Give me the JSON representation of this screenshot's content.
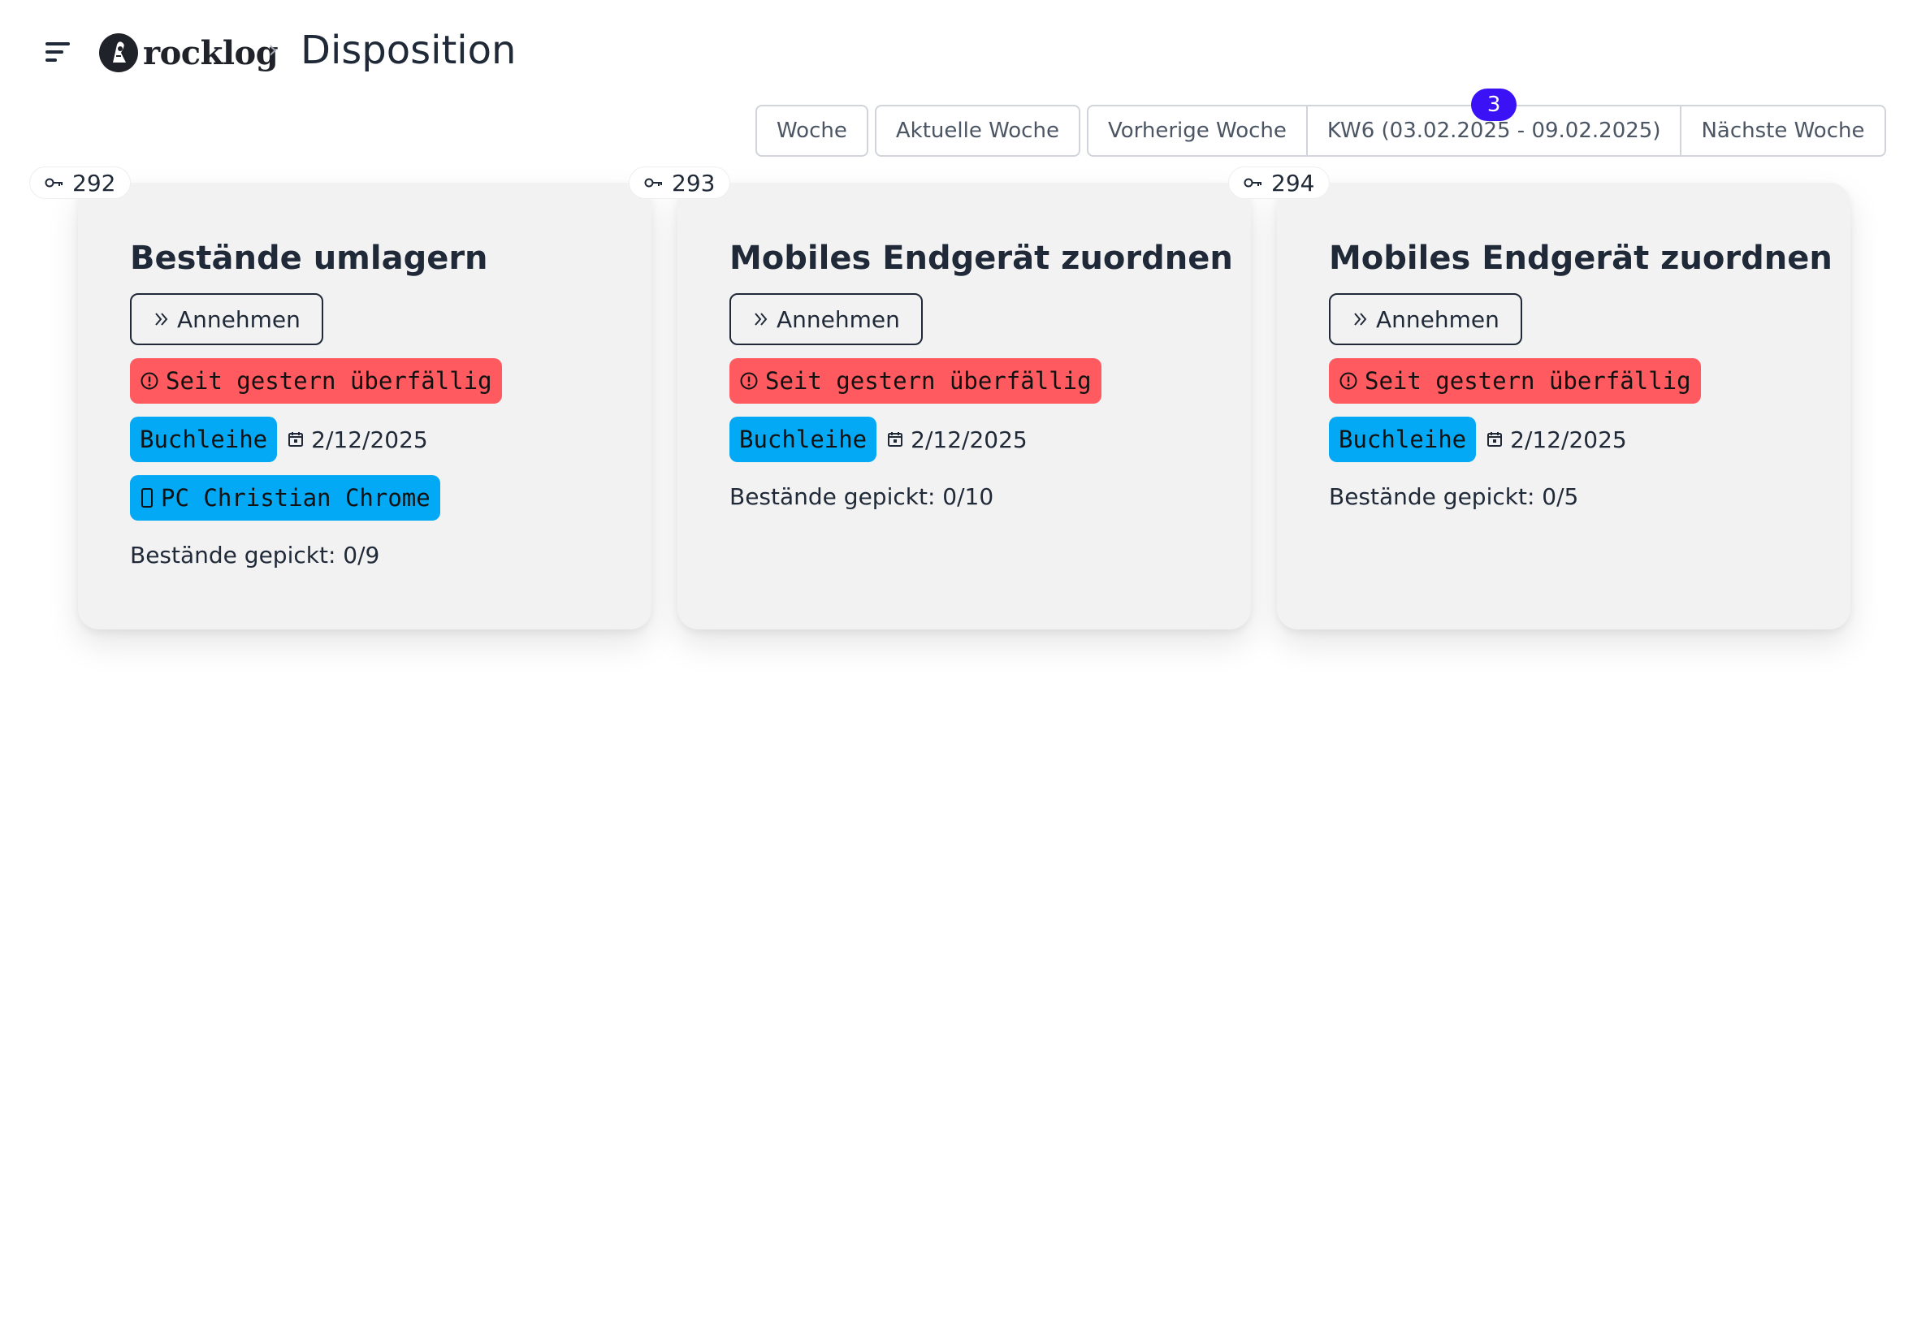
{
  "header": {
    "brand": "rocklog",
    "breadcrumb_separator": "›",
    "page_title": "Disposition"
  },
  "toolbar": {
    "week_label": "Woche",
    "current_week_label": "Aktuelle Woche",
    "previous_week_label": "Vorherige Woche",
    "selected_week_label": "KW6 (03.02.2025 - 09.02.2025)",
    "selected_week_count": "3",
    "next_week_label": "Nächste Woche",
    "badge_color": "#3b12f5"
  },
  "cards": [
    {
      "id": "292",
      "title": "Bestände umlagern",
      "accept_label": "Annehmen",
      "overdue_label": "Seit gestern überfällig",
      "category_label": "Buchleihe",
      "date": "2/12/2025",
      "device_label": "PC Christian Chrome",
      "picked_text": "Bestände gepickt: 0/9"
    },
    {
      "id": "293",
      "title": "Mobiles Endgerät zuordnen",
      "accept_label": "Annehmen",
      "overdue_label": "Seit gestern überfällig",
      "category_label": "Buchleihe",
      "date": "2/12/2025",
      "picked_text": "Bestände gepickt: 0/10"
    },
    {
      "id": "294",
      "title": "Mobiles Endgerät zuordnen",
      "accept_label": "Annehmen",
      "overdue_label": "Seit gestern überfällig",
      "category_label": "Buchleihe",
      "date": "2/12/2025",
      "picked_text": "Bestände gepickt: 0/5"
    }
  ],
  "colors": {
    "overdue": "#ff5a5f",
    "category": "#03a9f4",
    "card_background": "#f2f2f3"
  },
  "icons": {
    "menu": "hamburger-icon",
    "logo": "rocklog-logo-icon",
    "id": "key-icon",
    "accept": "double-chevron-right-icon",
    "overdue": "alert-circle-icon",
    "date": "calendar-icon",
    "device": "mobile-device-icon"
  }
}
